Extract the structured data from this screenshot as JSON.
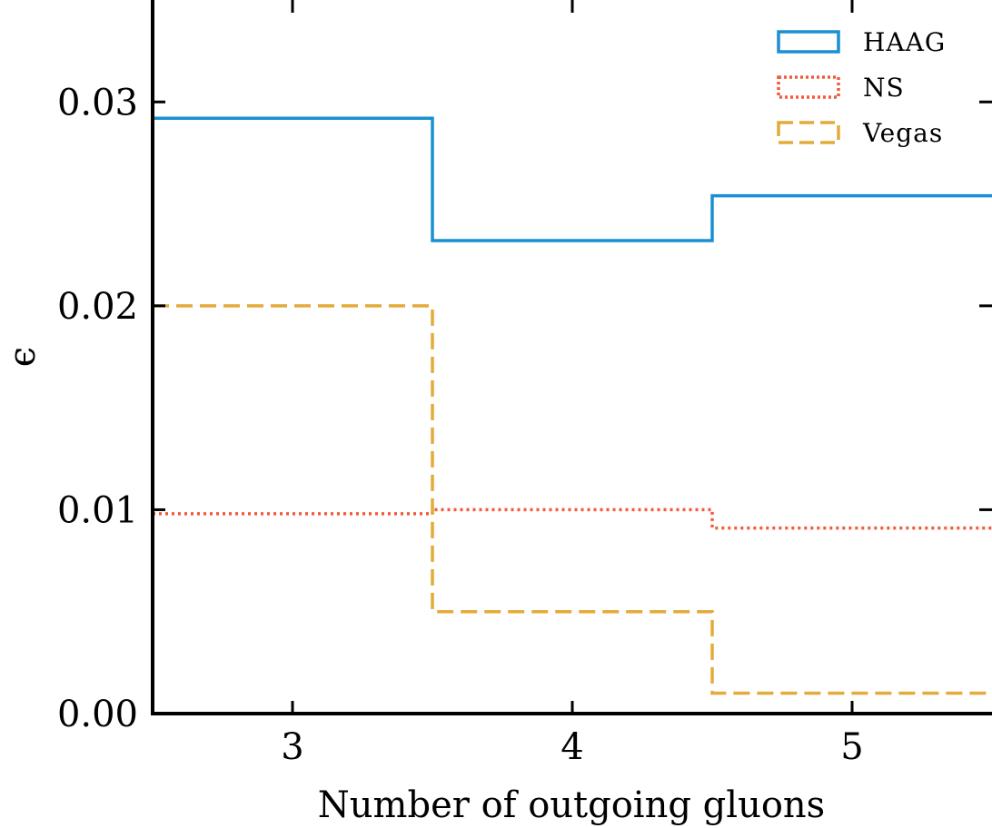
{
  "chart_data": {
    "type": "line",
    "drawstyle": "steps-mid",
    "xlabel": "Number of outgoing gluons",
    "ylabel": "ϵ",
    "xlim": [
      2.5,
      5.5
    ],
    "ylim": [
      0.0,
      0.035
    ],
    "xticks": [
      3,
      4,
      5
    ],
    "xtick_labels": [
      "3",
      "4",
      "5"
    ],
    "yticks": [
      0.0,
      0.01,
      0.02,
      0.03
    ],
    "ytick_labels": [
      "0.00",
      "0.01",
      "0.02",
      "0.03"
    ],
    "grid": false,
    "legend_position": "top-right",
    "x": [
      3,
      4,
      5
    ],
    "series": [
      {
        "name": "HAAG",
        "values": [
          0.0292,
          0.0232,
          0.0254
        ],
        "color": "#1a8fd1",
        "style": "solid"
      },
      {
        "name": "NS",
        "values": [
          0.0098,
          0.01,
          0.0091
        ],
        "color": "#f4593c",
        "style": "dotted"
      },
      {
        "name": "Vegas",
        "values": [
          0.02,
          0.005,
          0.001
        ],
        "color": "#e3ab3a",
        "style": "dashed"
      }
    ]
  }
}
